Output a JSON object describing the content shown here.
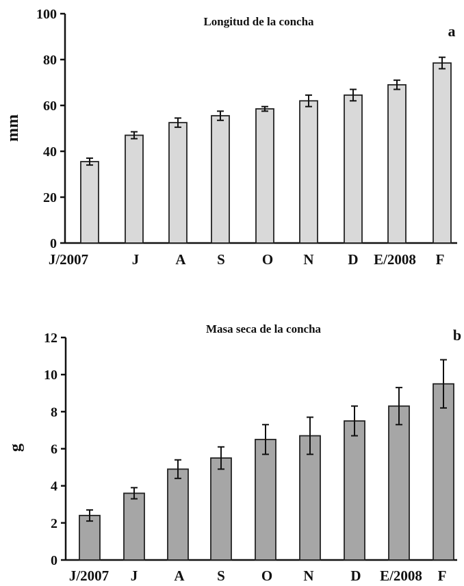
{
  "chart_data": [
    {
      "type": "bar",
      "panel": "a",
      "title": "Longitud de la concha",
      "ylabel": "mm",
      "xlabel": "",
      "categories": [
        "J/2007",
        "J",
        "A",
        "S",
        "O",
        "N",
        "D",
        "E/2008",
        "F"
      ],
      "values": [
        35.5,
        47,
        52.5,
        55.5,
        58.5,
        62,
        64.5,
        69,
        78.5
      ],
      "errors": [
        1.5,
        1.5,
        2,
        2,
        1,
        2.5,
        2.5,
        2,
        2.5
      ],
      "ylim": [
        0,
        100
      ],
      "yticks": [
        "0",
        "20",
        "40",
        "60",
        "80",
        "100"
      ],
      "grid": false,
      "bar_color": "#d9d9d9"
    },
    {
      "type": "bar",
      "panel": "b",
      "title": "Masa seca de la concha",
      "ylabel": "g",
      "xlabel": "",
      "categories": [
        "J/2007",
        "J",
        "A",
        "S",
        "O",
        "N",
        "D",
        "E/2008",
        "F"
      ],
      "values": [
        2.4,
        3.6,
        4.9,
        5.5,
        6.5,
        6.7,
        7.5,
        8.3,
        9.5
      ],
      "errors": [
        0.3,
        0.3,
        0.5,
        0.6,
        0.8,
        1.0,
        0.8,
        1.0,
        1.3
      ],
      "ylim": [
        0,
        12
      ],
      "yticks": [
        "0",
        "2",
        "4",
        "6",
        "8",
        "10",
        "12"
      ],
      "grid": false,
      "bar_color": "#a6a6a6"
    }
  ]
}
